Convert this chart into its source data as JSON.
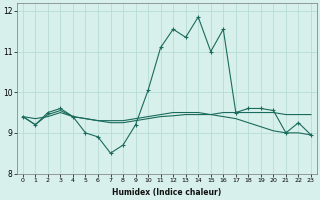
{
  "xlabel": "Humidex (Indice chaleur)",
  "x": [
    0,
    1,
    2,
    3,
    4,
    5,
    6,
    7,
    8,
    9,
    10,
    11,
    12,
    13,
    14,
    15,
    16,
    17,
    18,
    19,
    20,
    21,
    22,
    23
  ],
  "line1": [
    9.4,
    9.2,
    9.5,
    9.6,
    9.4,
    9.0,
    8.9,
    8.5,
    8.7,
    9.2,
    10.05,
    11.1,
    11.55,
    11.35,
    11.85,
    11.0,
    11.55,
    9.5,
    9.6,
    9.6,
    9.55,
    9.0,
    9.25,
    8.95
  ],
  "line2": [
    9.4,
    9.2,
    9.45,
    9.55,
    9.4,
    9.35,
    9.3,
    9.3,
    9.3,
    9.35,
    9.4,
    9.45,
    9.5,
    9.5,
    9.5,
    9.45,
    9.4,
    9.35,
    9.25,
    9.15,
    9.05,
    9.0,
    9.0,
    8.95
  ],
  "line3": [
    9.4,
    9.35,
    9.4,
    9.5,
    9.4,
    9.35,
    9.3,
    9.25,
    9.25,
    9.3,
    9.35,
    9.4,
    9.42,
    9.45,
    9.45,
    9.45,
    9.5,
    9.5,
    9.5,
    9.5,
    9.5,
    9.45,
    9.45,
    9.45
  ],
  "line_color": "#1a6b5c",
  "bg_color": "#d8f0ec",
  "grid_color": "#b8dcd6",
  "ylim": [
    8.0,
    12.2
  ],
  "xlim": [
    -0.5,
    23.5
  ],
  "yticks": [
    8,
    9,
    10,
    11,
    12
  ],
  "xticks": [
    0,
    1,
    2,
    3,
    4,
    5,
    6,
    7,
    8,
    9,
    10,
    11,
    12,
    13,
    14,
    15,
    16,
    17,
    18,
    19,
    20,
    21,
    22,
    23
  ]
}
